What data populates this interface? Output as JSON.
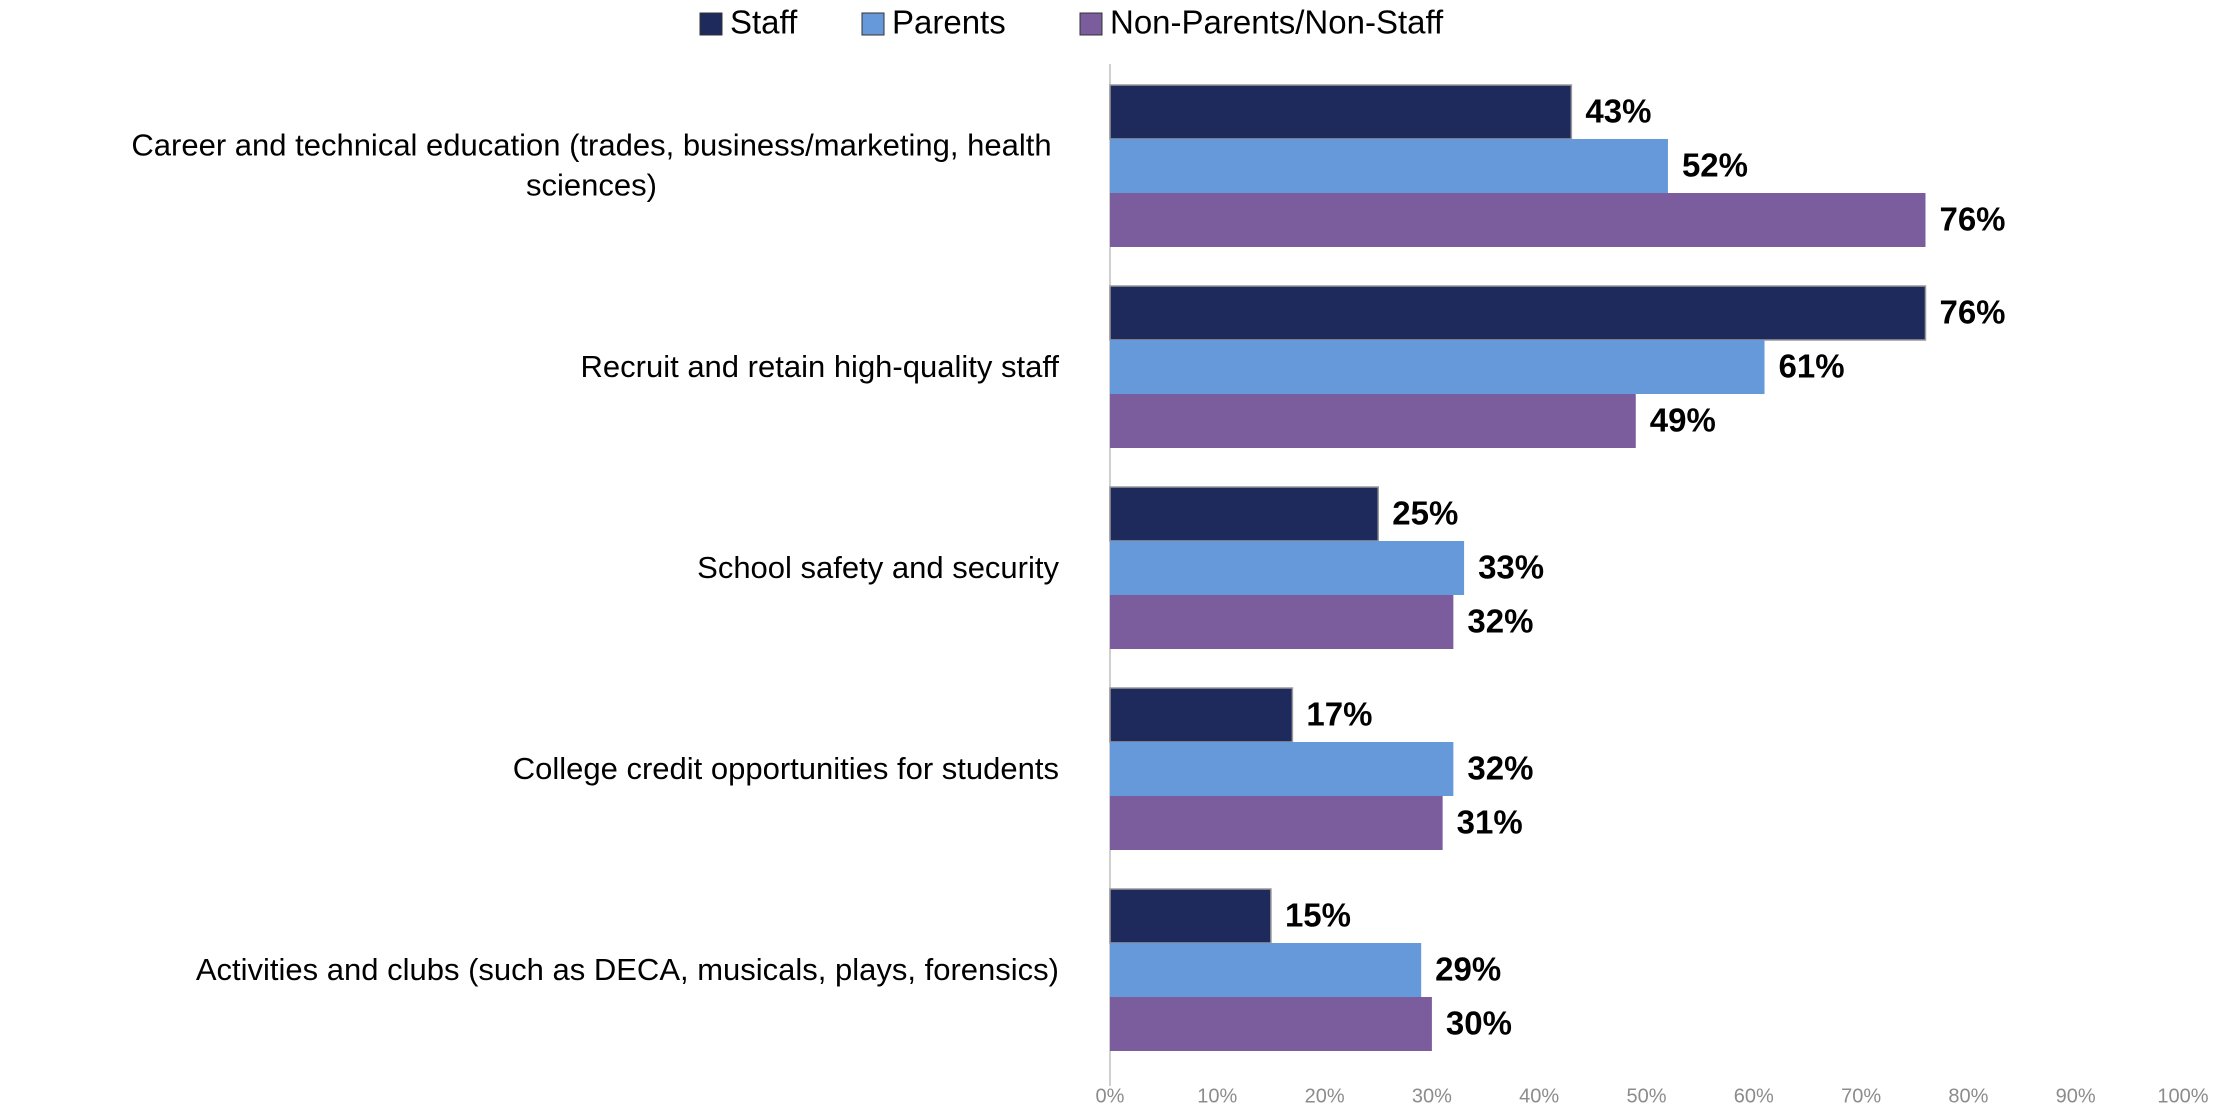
{
  "chart_data": {
    "type": "hbar",
    "categories": [
      "Career and technical education (trades, business/marketing, health sciences)",
      "Recruit and retain high-quality staff",
      "School safety and security",
      "College credit opportunities for students",
      "Activities and clubs (such as DECA, musicals, plays, forensics)"
    ],
    "series": [
      {
        "name": "Staff",
        "color": "#1f2a5c",
        "values": [
          43,
          76,
          25,
          17,
          15
        ],
        "value_labels": [
          "43%",
          "76%",
          "25%",
          "17%",
          "15%"
        ]
      },
      {
        "name": "Parents",
        "color": "#6699d9",
        "values": [
          52,
          61,
          33,
          32,
          29
        ],
        "value_labels": [
          "52%",
          "61%",
          "33%",
          "32%",
          "29%"
        ]
      },
      {
        "name": "Non-Parents/Non-Staff",
        "color": "#7b5c9c",
        "values": [
          76,
          49,
          32,
          31,
          30
        ],
        "value_labels": [
          "76%",
          "49%",
          "32%",
          "31%",
          "30%"
        ]
      }
    ],
    "xlim": [
      0,
      100
    ],
    "xticks": [
      {
        "value": 0,
        "label": "0%"
      },
      {
        "value": 10,
        "label": "10%"
      },
      {
        "value": 20,
        "label": "20%"
      },
      {
        "value": 30,
        "label": "30%"
      },
      {
        "value": 40,
        "label": "40%"
      },
      {
        "value": 50,
        "label": "50%"
      },
      {
        "value": 60,
        "label": "60%"
      },
      {
        "value": 70,
        "label": "70%"
      },
      {
        "value": 80,
        "label": "80%"
      },
      {
        "value": 90,
        "label": "90%"
      },
      {
        "value": 100,
        "label": "100%"
      }
    ],
    "legend": "top"
  }
}
